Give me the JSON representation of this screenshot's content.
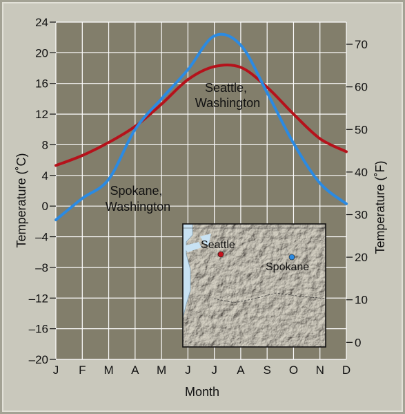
{
  "chart_data": {
    "type": "line",
    "title": "",
    "xlabel": "Month",
    "ylabel_left": "Temperature (˚C)",
    "ylabel_right": "Temperature (˚F)",
    "categories": [
      "J",
      "F",
      "M",
      "A",
      "M",
      "J",
      "J",
      "A",
      "S",
      "O",
      "N",
      "D"
    ],
    "y_left_ticks": [
      24,
      20,
      16,
      12,
      8,
      4,
      0,
      -4,
      -8,
      -12,
      -16,
      -20
    ],
    "y_left_tick_labels": [
      "24",
      "20",
      "16",
      "12",
      "8",
      "4",
      "0",
      "–4",
      "–8",
      "–12",
      "–16",
      "–20"
    ],
    "y_right_ticks": [
      70,
      60,
      50,
      40,
      30,
      20,
      10,
      0
    ],
    "ylim": [
      -20,
      24
    ],
    "grid": true,
    "series": [
      {
        "name": "Seattle, Washington",
        "color": "#b5121b",
        "values": [
          5.3,
          6.6,
          8.3,
          10.4,
          13.3,
          16.5,
          18.2,
          18.1,
          15.5,
          12.0,
          8.8,
          7.1
        ]
      },
      {
        "name": "Spokane, Washington",
        "color": "#2b8ae2",
        "values": [
          -1.8,
          1.0,
          3.5,
          10.0,
          14.0,
          17.8,
          22.2,
          21.0,
          14.8,
          8.2,
          3.0,
          0.3
        ]
      }
    ],
    "annotations": {
      "seattle": [
        "Seattle,",
        "Washington"
      ],
      "spokane": [
        "Spokane,",
        "Washington"
      ]
    },
    "inset_map": {
      "labels": {
        "seattle": "Seattle",
        "spokane": "Spokane"
      },
      "colors": {
        "seattle": "#c3141e",
        "spokane": "#2b8ae2",
        "water": "#c8e2f3",
        "land": "#8a8574"
      }
    }
  }
}
